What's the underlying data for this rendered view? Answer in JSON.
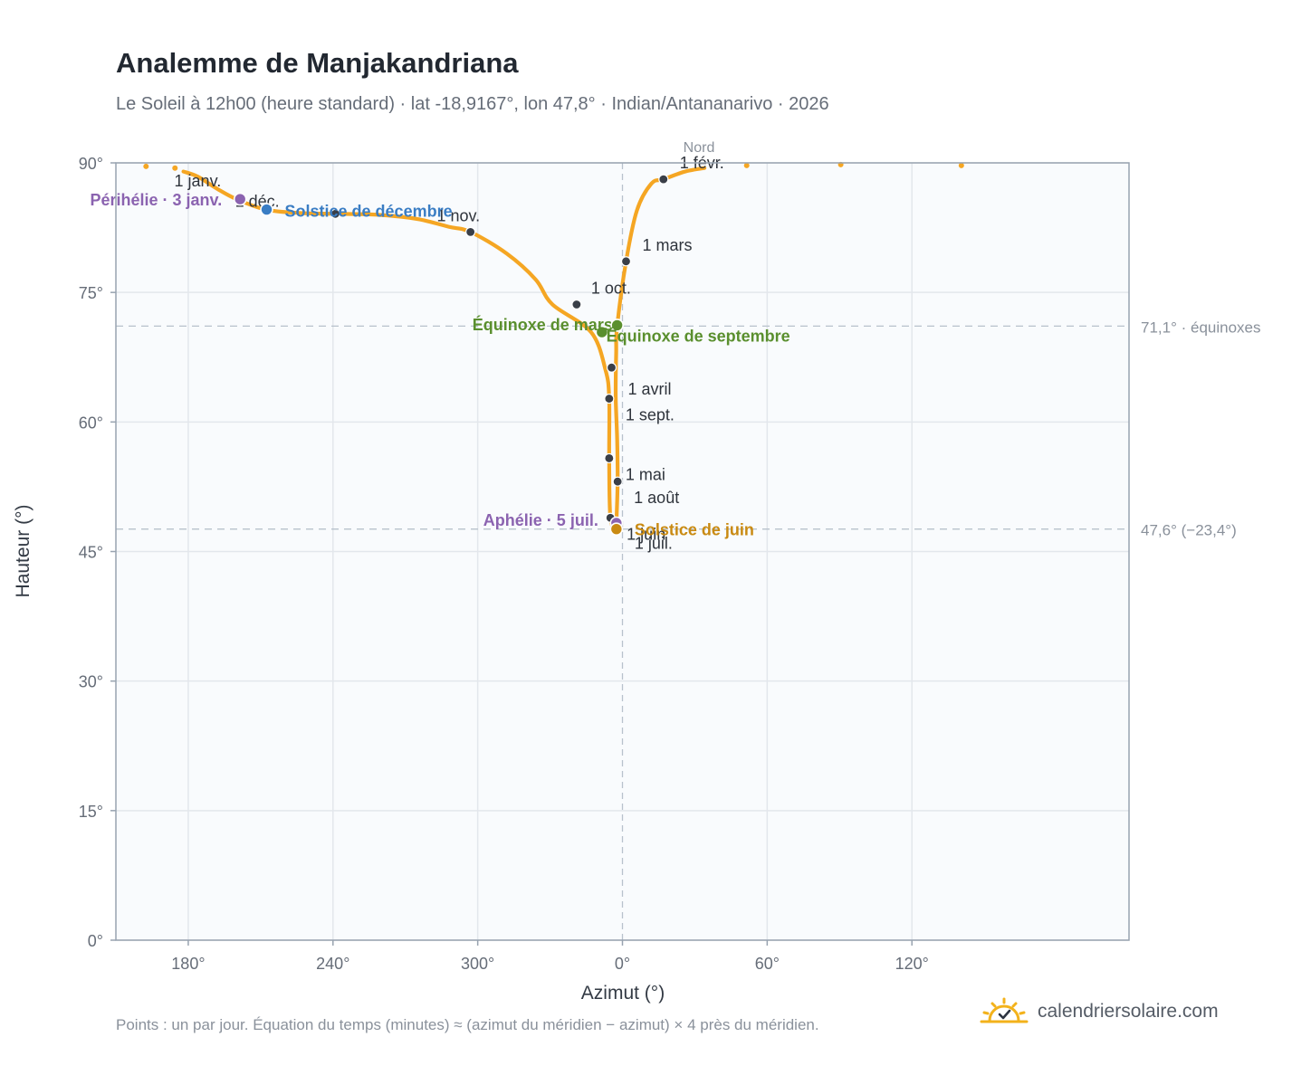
{
  "title": "Analemme de Manjakandriana",
  "subtitle": "Le Soleil à 12h00 (heure standard) · lat -18,9167°, lon 47,8° · Indian/Antananarivo · 2026",
  "footnote": "Points : un par jour. Équation du temps (minutes) ≈ (azimut du méridien − azimut) × 4 près du méridien.",
  "brand": {
    "name": "calendriersolaire.com",
    "logo_icon": "sun-check-icon"
  },
  "colors": {
    "curve": "#f5a623",
    "month_dot": "#3a3f48",
    "solstice_dec": "#3a7dc4",
    "solstice_jun": "#c98a12",
    "equinox": "#5a8f2e",
    "apsis": "#8b63b0",
    "grid": "#e3e7ec",
    "plot_bg": "#f9fbfd",
    "ref_line": "#b8c2cc"
  },
  "chart_data": {
    "type": "scatter",
    "xlabel": "Azimut (°)",
    "ylabel": "Hauteur (°)",
    "xlim": [
      150,
      210
    ],
    "x_note": "azimuth in degrees, axis wraps through 0° (North)",
    "ylim": [
      0,
      90
    ],
    "x_ticks": [
      "180°",
      "240°",
      "300°",
      "0°",
      "60°",
      "120°"
    ],
    "y_ticks": [
      "0°",
      "15°",
      "30°",
      "45°",
      "60°",
      "75°",
      "90°"
    ],
    "grid": true,
    "north_label": "Nord",
    "reference_lines": [
      {
        "altitude": 71.1,
        "label": "71,1° · équinoxes"
      },
      {
        "altitude": 47.6,
        "label": "47,6° (−23,4°)"
      }
    ],
    "outlier_points": [
      {
        "azimuth": 162.5,
        "altitude": 89.6
      },
      {
        "azimuth": 174.5,
        "altitude": 89.4
      },
      {
        "azimuth": 51.5,
        "altitude": 89.7
      },
      {
        "azimuth": 90.5,
        "altitude": 89.8
      },
      {
        "azimuth": 140.5,
        "altitude": 89.7
      }
    ],
    "path": [
      {
        "azimuth": 178,
        "altitude": 89.0
      },
      {
        "azimuth": 184,
        "altitude": 88.4
      },
      {
        "azimuth": 192,
        "altitude": 87.0
      },
      {
        "azimuth": 200,
        "altitude": 85.8
      },
      {
        "azimuth": 212,
        "altitude": 84.6
      },
      {
        "azimuth": 226,
        "altitude": 84.2
      },
      {
        "azimuth": 241,
        "altitude": 84.1
      },
      {
        "azimuth": 258,
        "altitude": 84.0
      },
      {
        "azimuth": 275,
        "altitude": 83.5
      },
      {
        "azimuth": 288,
        "altitude": 82.6
      },
      {
        "azimuth": 297,
        "altitude": 82.0
      },
      {
        "azimuth": 312,
        "altitude": 79.5
      },
      {
        "azimuth": 324,
        "altitude": 76.5
      },
      {
        "azimuth": 331,
        "altitude": 73.6
      },
      {
        "azimuth": 347,
        "altitude": 70.4
      },
      {
        "azimuth": 353,
        "altitude": 66.0
      },
      {
        "azimuth": 354.5,
        "altitude": 62.7
      },
      {
        "azimuth": 354.5,
        "altitude": 55.8
      },
      {
        "azimuth": 355,
        "altitude": 48.9
      },
      {
        "azimuth": 357.5,
        "altitude": 47.6
      },
      {
        "azimuth": 357.5,
        "altitude": 48.3
      },
      {
        "azimuth": 358,
        "altitude": 53.1
      },
      {
        "azimuth": 357.8,
        "altitude": 58
      },
      {
        "azimuth": 357.2,
        "altitude": 63
      },
      {
        "azimuth": 357.4,
        "altitude": 68
      },
      {
        "azimuth": 357.8,
        "altitude": 71.1
      },
      {
        "azimuth": 1.5,
        "altitude": 78.6
      },
      {
        "azimuth": 6,
        "altitude": 84.5
      },
      {
        "azimuth": 12,
        "altitude": 87.6
      },
      {
        "azimuth": 17,
        "altitude": 88.1
      },
      {
        "azimuth": 26,
        "altitude": 89.0
      },
      {
        "azimuth": 34,
        "altitude": 89.4
      }
    ],
    "month_markers": [
      {
        "label": "1 janv.",
        "azimuth": 202,
        "altitude": 85.8,
        "dx": -74,
        "dy": -14
      },
      {
        "label": "1 févr.",
        "azimuth": 17,
        "altitude": 88.1,
        "dx": 18,
        "dy": -12
      },
      {
        "label": "1 mars",
        "azimuth": 1.5,
        "altitude": 78.6,
        "dx": 18,
        "dy": -12
      },
      {
        "label": "1 avril",
        "azimuth": 355.5,
        "altitude": 66.3,
        "dx": 18,
        "dy": 30
      },
      {
        "label": "1 mai",
        "azimuth": 354.5,
        "altitude": 55.8,
        "dx": 18,
        "dy": 24
      },
      {
        "label": "1 juin",
        "azimuth": 355,
        "altitude": 48.9,
        "dx": 18,
        "dy": 24
      },
      {
        "label": "1 juil.",
        "azimuth": 357.5,
        "altitude": 47.6,
        "dx": 20,
        "dy": 22
      },
      {
        "label": "1 août",
        "azimuth": 358,
        "altitude": 53.1,
        "dx": 18,
        "dy": 24
      },
      {
        "label": "1 sept.",
        "azimuth": 354.5,
        "altitude": 62.7,
        "dx": 18,
        "dy": 24
      },
      {
        "label": "1 oct.",
        "azimuth": 341,
        "altitude": 73.6,
        "dx": 16,
        "dy": -12
      },
      {
        "label": "1 nov.",
        "azimuth": 241,
        "altitude": 84.1,
        "dx": 112,
        "dy": 8
      },
      {
        "label": "1 déc.",
        "azimuth": 297,
        "altitude": 82.0,
        "dx": -260,
        "dy": -28
      }
    ],
    "events": [
      {
        "label": "Périhélie · 3 janv.",
        "kind": "apsis",
        "azimuth": 201.5,
        "altitude": 85.8,
        "anchor": "end",
        "dx": -20,
        "dy": 7
      },
      {
        "label": "Solstice de décembre",
        "kind": "solstice_dec",
        "azimuth": 212.5,
        "altitude": 84.6,
        "anchor": "start",
        "dx": 20,
        "dy": 8
      },
      {
        "label": "Équinoxe de mars",
        "kind": "equinox",
        "azimuth": 351.5,
        "altitude": 70.4,
        "anchor": "end",
        "dx": 12,
        "dy": -2
      },
      {
        "label": "Équinoxe de septembre",
        "kind": "equinox",
        "azimuth": 357.8,
        "altitude": 71.2,
        "anchor": "start",
        "dx": -12,
        "dy": 18
      },
      {
        "label": "Aphélie · 5 juil.",
        "kind": "apsis",
        "azimuth": 357.5,
        "altitude": 48.3,
        "anchor": "end",
        "dx": -20,
        "dy": 3
      },
      {
        "label": "Solstice de juin",
        "kind": "solstice_jun",
        "azimuth": 357.5,
        "altitude": 47.6,
        "anchor": "start",
        "dx": 20,
        "dy": 7
      }
    ]
  }
}
